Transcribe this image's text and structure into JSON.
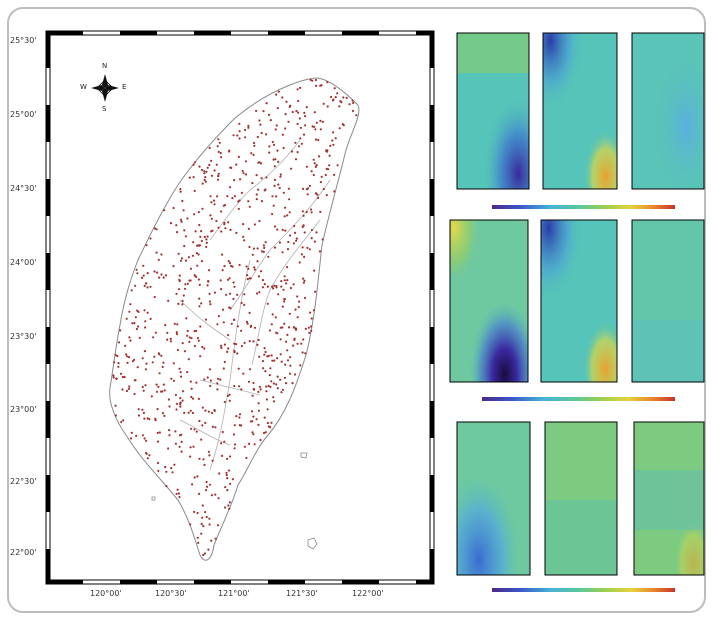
{
  "map": {
    "latitude_labels": [
      "25°30'",
      "25°00'",
      "24°30'",
      "24°00'",
      "23°30'",
      "23°00'",
      "22°30'",
      "22°00'"
    ],
    "longitude_labels": [
      "120°00'",
      "120°30'",
      "121°00'",
      "121°30'",
      "122°00'"
    ],
    "compass": {
      "n": "N",
      "s": "S",
      "e": "E",
      "w": "W"
    },
    "station_color": "#a03232",
    "island_outline_color": "#8a8a8a"
  },
  "panels": {
    "rows": 3,
    "columns": 3,
    "colorbar_stops": [
      "#4b2a87",
      "#3a55c8",
      "#46b4d8",
      "#5cc79a",
      "#9bd04f",
      "#e6d23c",
      "#e8892c",
      "#c8322a"
    ]
  },
  "colors": {
    "frame": "#bdbdbd",
    "neatline": "#000000"
  }
}
